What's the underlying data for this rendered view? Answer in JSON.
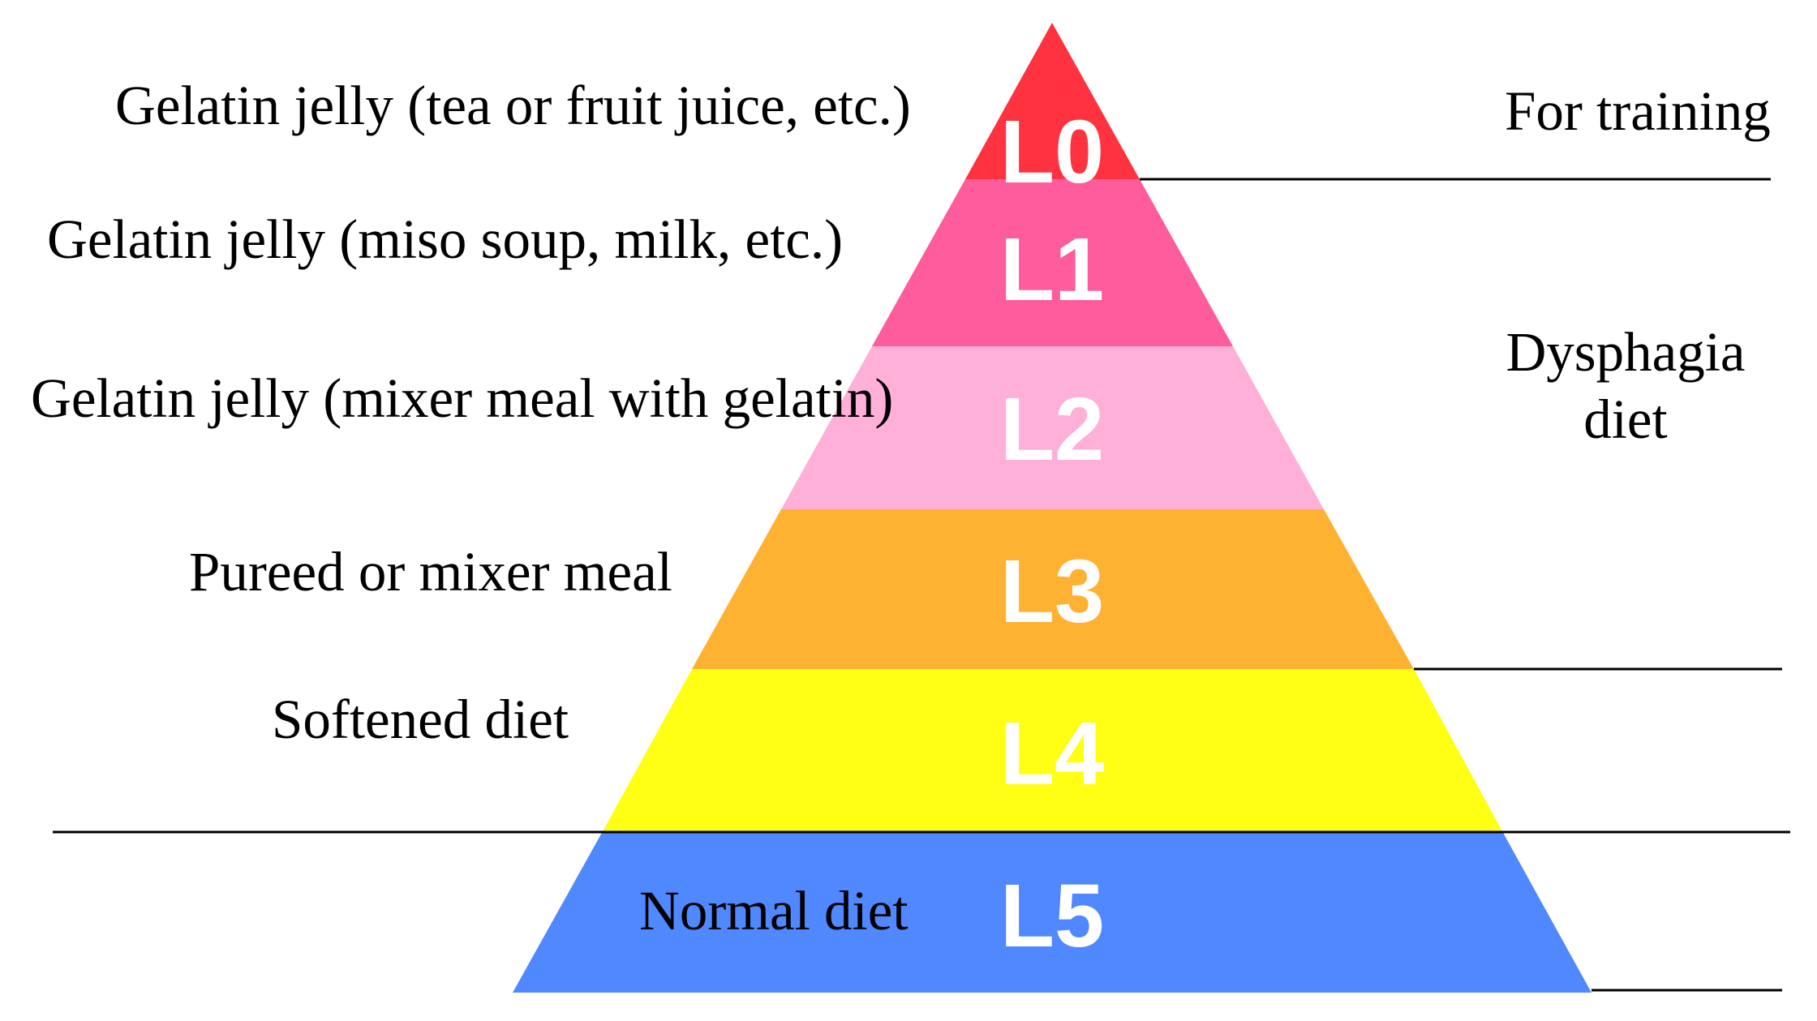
{
  "levels": [
    {
      "code": "L0",
      "description": "Gelatin jelly (tea or fruit juice, etc.)",
      "color": "#FF3340"
    },
    {
      "code": "L1",
      "description": "Gelatin jelly (miso soup, milk, etc.)",
      "color": "#FF5C9D"
    },
    {
      "code": "L2",
      "description": "Gelatin jelly (mixer meal with gelatin)",
      "color": "#FFB0D8"
    },
    {
      "code": "L3",
      "description": "Pureed or mixer meal",
      "color": "#FFB232"
    },
    {
      "code": "L4",
      "description": "Softened diet",
      "color": "#FFFF14"
    },
    {
      "code": "L5",
      "description": "Normal diet",
      "color": "#4F88FF"
    }
  ],
  "categories": {
    "training": "For training",
    "dysphagia_line1": "Dysphagia",
    "dysphagia_line2": "diet"
  }
}
